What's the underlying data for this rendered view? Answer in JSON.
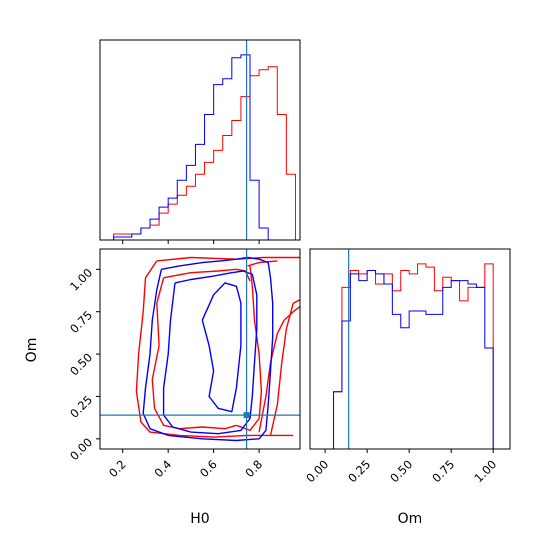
{
  "colors": {
    "red": "#ff0000",
    "blue": "#0000ff",
    "truth": "#1f77b4",
    "frame": "#000000"
  },
  "chart_data": [
    {
      "id": "h0-histogram",
      "type": "histogram",
      "xlim": [
        0.1,
        0.98
      ],
      "truth_x": 0.745,
      "series": [
        {
          "color": "red",
          "edges": [
            0.12,
            0.16,
            0.2,
            0.24,
            0.28,
            0.32,
            0.36,
            0.4,
            0.44,
            0.48,
            0.52,
            0.56,
            0.6,
            0.64,
            0.68,
            0.72,
            0.76,
            0.8,
            0.84,
            0.88,
            0.92,
            0.96
          ],
          "values": [
            0,
            2,
            2,
            2,
            4,
            5,
            9,
            12,
            15,
            18,
            22,
            26,
            30,
            35,
            40,
            48,
            55,
            57,
            58,
            42,
            22
          ]
        },
        {
          "color": "blue",
          "edges": [
            0.12,
            0.16,
            0.2,
            0.24,
            0.28,
            0.32,
            0.36,
            0.4,
            0.44,
            0.48,
            0.52,
            0.56,
            0.6,
            0.64,
            0.68,
            0.72,
            0.76,
            0.8,
            0.84,
            0.88,
            0.92,
            0.96
          ],
          "values": [
            0,
            1,
            1,
            2,
            4,
            7,
            11,
            14,
            20,
            25,
            32,
            42,
            52,
            54,
            61,
            62,
            20,
            4,
            0,
            0,
            0
          ]
        }
      ]
    },
    {
      "id": "om-histogram",
      "type": "histogram",
      "xlim": [
        -0.09,
        1.1
      ],
      "truth_x": 0.14,
      "xticks": [
        0.0,
        0.25,
        0.5,
        0.75,
        1.0
      ],
      "xtick_labels": [
        "0.00",
        "0.25",
        "0.50",
        "0.75",
        "1.00"
      ],
      "xlabel": "Om",
      "series": [
        {
          "color": "red",
          "edges": [
            0.0,
            0.05,
            0.1,
            0.15,
            0.2,
            0.25,
            0.3,
            0.35,
            0.4,
            0.45,
            0.5,
            0.55,
            0.6,
            0.65,
            0.7,
            0.75,
            0.8,
            0.85,
            0.9,
            0.95,
            1.0
          ],
          "values": [
            0,
            17,
            48,
            53,
            52,
            53,
            49,
            52,
            47,
            53,
            52,
            55,
            54,
            47,
            51,
            50,
            44,
            48,
            48,
            55,
            0
          ]
        },
        {
          "color": "blue",
          "edges": [
            0.0,
            0.05,
            0.1,
            0.15,
            0.2,
            0.25,
            0.3,
            0.35,
            0.4,
            0.45,
            0.5,
            0.55,
            0.6,
            0.65,
            0.7,
            0.75,
            0.8,
            0.85,
            0.9,
            0.95,
            1.0
          ],
          "values": [
            0,
            17,
            38,
            52,
            50,
            53,
            52,
            49,
            40,
            36,
            41,
            41,
            40,
            40,
            48,
            50,
            50,
            49,
            48,
            30,
            0
          ]
        }
      ]
    },
    {
      "id": "h0-om-contours",
      "type": "contour",
      "xlim": [
        0.1,
        0.98
      ],
      "ylim": [
        -0.06,
        1.12
      ],
      "truth_x": 0.745,
      "truth_y": 0.14,
      "xticks": [
        0.2,
        0.4,
        0.6,
        0.8
      ],
      "xtick_labels": [
        "0.2",
        "0.4",
        "0.6",
        "0.8"
      ],
      "yticks": [
        0.0,
        0.25,
        0.5,
        0.75,
        1.0
      ],
      "ytick_labels": [
        "0.00",
        "0.25",
        "0.50",
        "0.75",
        "1.00"
      ],
      "xlabel": "H0",
      "ylabel": "Om",
      "contours": [
        {
          "color": "red",
          "points": [
            [
              0.35,
              1.05
            ],
            [
              0.5,
              1.07
            ],
            [
              0.7,
              1.06
            ],
            [
              0.82,
              1.07
            ],
            [
              0.9,
              1.07
            ],
            [
              0.98,
              1.07
            ]
          ]
        },
        {
          "color": "red",
          "points": [
            [
              0.35,
              1.05
            ],
            [
              0.3,
              0.95
            ],
            [
              0.29,
              0.75
            ],
            [
              0.27,
              0.5
            ],
            [
              0.26,
              0.28
            ],
            [
              0.28,
              0.1
            ],
            [
              0.32,
              0.04
            ],
            [
              0.45,
              0.02
            ],
            [
              0.6,
              0.01
            ],
            [
              0.75,
              0.02
            ],
            [
              0.85,
              0.02
            ],
            [
              0.95,
              0.02
            ]
          ]
        },
        {
          "color": "red",
          "points": [
            [
              0.85,
              0.02
            ],
            [
              0.88,
              0.2
            ],
            [
              0.9,
              0.45
            ],
            [
              0.92,
              0.65
            ],
            [
              0.95,
              0.8
            ],
            [
              0.98,
              0.82
            ]
          ]
        },
        {
          "color": "red",
          "points": [
            [
              0.8,
              0.04
            ],
            [
              0.83,
              0.25
            ],
            [
              0.85,
              0.45
            ],
            [
              0.88,
              0.62
            ],
            [
              0.91,
              0.7
            ],
            [
              0.95,
              0.75
            ],
            [
              0.98,
              0.78
            ]
          ]
        },
        {
          "color": "red",
          "points": [
            [
              0.75,
              1.02
            ],
            [
              0.8,
              1.04
            ],
            [
              0.88,
              1.05
            ]
          ]
        },
        {
          "color": "red",
          "points": [
            [
              0.7,
              0.08
            ],
            [
              0.76,
              0.05
            ],
            [
              0.8,
              0.12
            ],
            [
              0.81,
              0.28
            ],
            [
              0.8,
              0.5
            ],
            [
              0.78,
              0.7
            ],
            [
              0.77,
              0.9
            ],
            [
              0.76,
              1.02
            ]
          ]
        },
        {
          "color": "red",
          "points": [
            [
              0.38,
              0.95
            ],
            [
              0.42,
              0.96
            ],
            [
              0.5,
              0.98
            ],
            [
              0.62,
              0.99
            ],
            [
              0.7,
              1.0
            ],
            [
              0.74,
              0.99
            ],
            [
              0.76,
              0.93
            ]
          ]
        },
        {
          "color": "red",
          "points": [
            [
              0.38,
              0.95
            ],
            [
              0.35,
              0.8
            ],
            [
              0.36,
              0.55
            ],
            [
              0.33,
              0.35
            ],
            [
              0.34,
              0.18
            ],
            [
              0.38,
              0.08
            ],
            [
              0.45,
              0.06
            ],
            [
              0.55,
              0.07
            ],
            [
              0.65,
              0.06
            ],
            [
              0.7,
              0.08
            ]
          ]
        },
        {
          "color": "blue",
          "points": [
            [
              0.37,
              1.0
            ],
            [
              0.45,
              1.02
            ],
            [
              0.55,
              1.04
            ],
            [
              0.63,
              1.05
            ],
            [
              0.7,
              1.06
            ],
            [
              0.75,
              1.07
            ],
            [
              0.8,
              1.06
            ],
            [
              0.84,
              1.04
            ],
            [
              0.85,
              0.95
            ],
            [
              0.86,
              0.8
            ],
            [
              0.86,
              0.6
            ],
            [
              0.85,
              0.4
            ],
            [
              0.84,
              0.2
            ],
            [
              0.83,
              0.05
            ],
            [
              0.8,
              0.0
            ],
            [
              0.7,
              -0.01
            ],
            [
              0.55,
              0.0
            ],
            [
              0.4,
              0.02
            ],
            [
              0.32,
              0.06
            ],
            [
              0.29,
              0.15
            ],
            [
              0.3,
              0.3
            ],
            [
              0.32,
              0.5
            ],
            [
              0.33,
              0.7
            ],
            [
              0.35,
              0.88
            ],
            [
              0.37,
              1.0
            ]
          ]
        },
        {
          "color": "blue",
          "points": [
            [
              0.43,
              0.92
            ],
            [
              0.5,
              0.94
            ],
            [
              0.6,
              0.96
            ],
            [
              0.68,
              0.98
            ],
            [
              0.73,
              0.99
            ],
            [
              0.77,
              0.97
            ],
            [
              0.79,
              0.85
            ],
            [
              0.79,
              0.65
            ],
            [
              0.78,
              0.45
            ],
            [
              0.77,
              0.25
            ],
            [
              0.76,
              0.12
            ],
            [
              0.72,
              0.05
            ],
            [
              0.62,
              0.03
            ],
            [
              0.5,
              0.04
            ],
            [
              0.42,
              0.07
            ],
            [
              0.38,
              0.14
            ],
            [
              0.38,
              0.3
            ],
            [
              0.4,
              0.5
            ],
            [
              0.41,
              0.7
            ],
            [
              0.43,
              0.92
            ]
          ]
        },
        {
          "color": "blue",
          "points": [
            [
              0.55,
              0.7
            ],
            [
              0.58,
              0.55
            ],
            [
              0.6,
              0.4
            ],
            [
              0.58,
              0.25
            ],
            [
              0.62,
              0.18
            ],
            [
              0.68,
              0.16
            ],
            [
              0.7,
              0.3
            ],
            [
              0.72,
              0.55
            ],
            [
              0.72,
              0.8
            ],
            [
              0.7,
              0.9
            ],
            [
              0.65,
              0.92
            ],
            [
              0.6,
              0.85
            ],
            [
              0.55,
              0.7
            ]
          ]
        }
      ]
    }
  ]
}
